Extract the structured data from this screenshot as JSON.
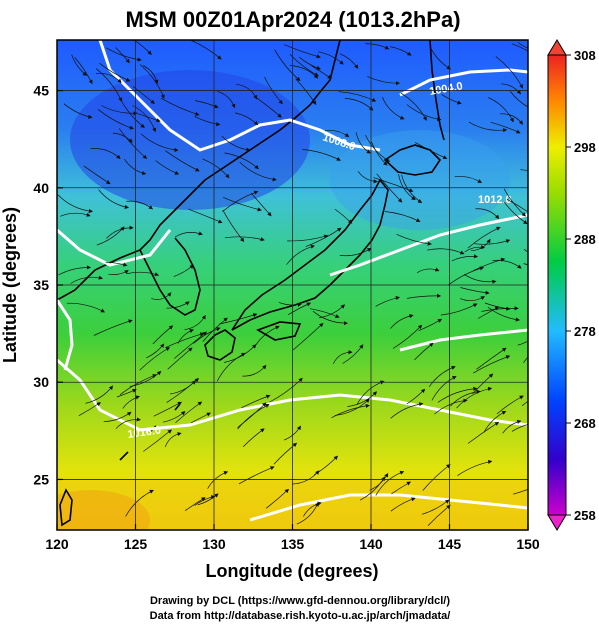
{
  "chart_data": {
    "type": "heatmap",
    "title": "MSM 00Z01Apr2024 (1013.2hPa)",
    "xlabel": "Longitude (degrees)",
    "ylabel": "Latitude  (degrees)",
    "xlim": [
      120,
      150
    ],
    "ylim": [
      22.4,
      47.6
    ],
    "x_ticks": [
      120,
      125,
      130,
      135,
      140,
      145,
      150
    ],
    "y_ticks": [
      25,
      30,
      35,
      40,
      45
    ],
    "grid": true,
    "colorbar": {
      "ticks": [
        258,
        268,
        278,
        288,
        298,
        308
      ],
      "range": [
        258,
        308
      ],
      "colors": [
        "#cc00cc",
        "#3300cc",
        "#0044ff",
        "#22bbff",
        "#00cc44",
        "#99dd00",
        "#eeee00",
        "#ff8800",
        "#ee2222"
      ]
    },
    "contours": [
      {
        "label": "1004.0"
      },
      {
        "label": "1008.0"
      },
      {
        "label": "1012.0"
      },
      {
        "label": "1016.0"
      }
    ],
    "field_description_points": [
      {
        "lon": 121,
        "lat": 46,
        "value": 272
      },
      {
        "lon": 130,
        "lat": 45,
        "value": 271
      },
      {
        "lon": 140,
        "lat": 44,
        "value": 277
      },
      {
        "lon": 148,
        "lat": 46,
        "value": 279
      },
      {
        "lon": 125,
        "lat": 38,
        "value": 283
      },
      {
        "lon": 138,
        "lat": 38,
        "value": 285
      },
      {
        "lon": 148,
        "lat": 38,
        "value": 287
      },
      {
        "lon": 122,
        "lat": 32,
        "value": 286
      },
      {
        "lon": 135,
        "lat": 31,
        "value": 289
      },
      {
        "lon": 148,
        "lat": 31,
        "value": 290
      },
      {
        "lon": 125,
        "lat": 24,
        "value": 295
      },
      {
        "lon": 140,
        "lat": 24,
        "value": 294
      },
      {
        "lon": 148,
        "lat": 23,
        "value": 293
      }
    ]
  },
  "credits": {
    "line1": "Drawing by DCL (https://www.gfd-dennou.org/library/dcl/)",
    "line2": "Data from http://database.rish.kyoto-u.ac.jp/arch/jmadata/"
  }
}
